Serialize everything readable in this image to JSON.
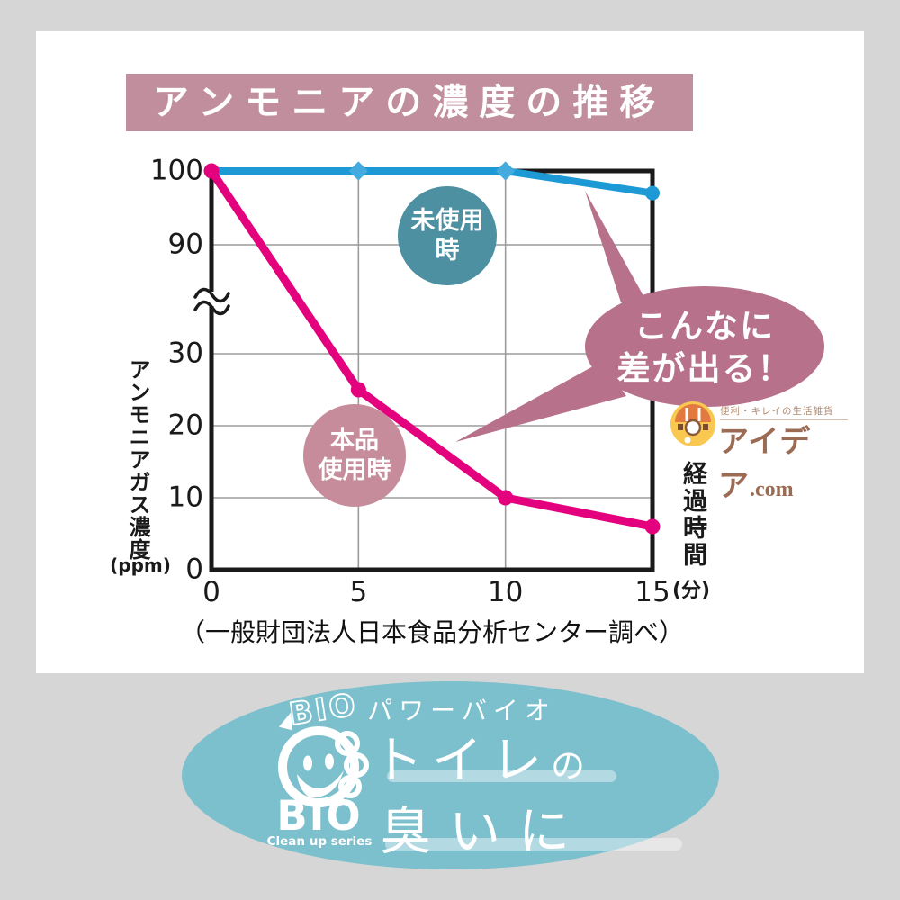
{
  "page": {
    "title_banner": "アンモニアの濃度の推移"
  },
  "colors": {
    "background": "#d6d6d7",
    "banner": "#c18e9d",
    "teal_badge": "#4d90a1",
    "rose_badge": "#c78c9b",
    "bubble": "#b8718a",
    "line_blue": "#1d9ad6",
    "line_pink": "#e4017d",
    "footer_ellipse": "#7cc0cd"
  },
  "chart_data": {
    "type": "line",
    "title": "アンモニアの濃度の推移",
    "x": [
      0,
      5,
      10,
      15
    ],
    "x_ticks": [
      {
        "label": "0",
        "value": 0
      },
      {
        "label": "5",
        "value": 5
      },
      {
        "label": "10",
        "value": 10
      },
      {
        "label": "15",
        "value": 15
      }
    ],
    "y_ticks": [
      {
        "label": "100",
        "value": 100
      },
      {
        "label": "90",
        "value": 90
      },
      {
        "label": "30",
        "value": 30
      },
      {
        "label": "20",
        "value": 20
      },
      {
        "label": "10",
        "value": 10
      },
      {
        "label": "0",
        "value": 0
      }
    ],
    "y_axis_break_between": [
      30,
      90
    ],
    "series": [
      {
        "name": "未使用時",
        "values": [
          100,
          100,
          100,
          97
        ],
        "color": "#1d9ad6",
        "width": 8
      },
      {
        "name": "本品使用時",
        "values": [
          100,
          25,
          10,
          6
        ],
        "color": "#e4017d",
        "width": 9
      }
    ],
    "ylabel": "アンモニアガス濃度",
    "ylabel_unit": "(ppm)",
    "xlabel": "経過時間",
    "xlabel_unit": "(分)",
    "grid": true,
    "legend_position": "on-chart circular badges",
    "source_note": "（一般財団法人日本食品分析センター調べ）"
  },
  "badges": {
    "unused": {
      "line1": "未使用",
      "line2": "時"
    },
    "used": {
      "line1": "本品",
      "line2": "使用時"
    }
  },
  "callout": {
    "line1": "こんなに",
    "line2": "差が出る！"
  },
  "idea_logo": {
    "tagline": "便利・キレイの生活雑貨",
    "name": "アイデア",
    "domain": ".com"
  },
  "footer": {
    "series_name": "パワーバイオ",
    "product_line1": "トイレ",
    "product_line1_particle": "の",
    "product_line2": "臭いに",
    "brand_outline": "BIO",
    "brand": "BIO",
    "brand_sub": "Clean up series"
  }
}
